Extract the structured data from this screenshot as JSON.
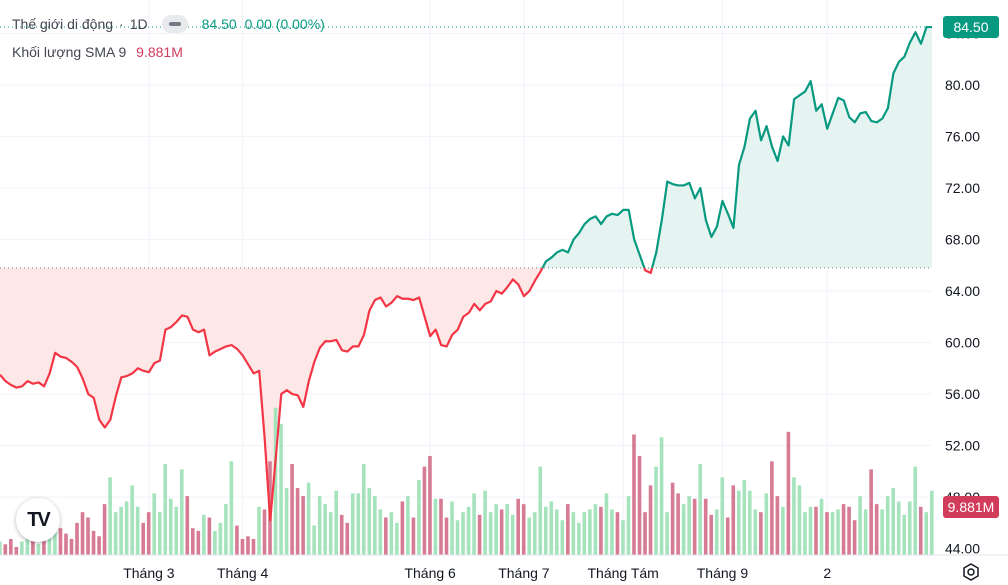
{
  "legend": {
    "symbol": "Thế giới di động",
    "interval": "1D",
    "price": "84.50",
    "change": "0.00 (0.00%)",
    "volume_label": "Khối lượng SMA 9",
    "volume_value": "9.881M"
  },
  "price_tag": "84.50",
  "volume_tag": "9.881M",
  "logo_text": "TV",
  "colors": {
    "up_line": "#089981",
    "down_line": "#f23645",
    "up_fill": "#e6f4f1",
    "down_fill": "#fde7e7",
    "vol_up": "#a5e3bd",
    "vol_down": "#d67b93",
    "baseline": "#d1d4dc"
  },
  "chart_data": {
    "type": "line",
    "baseline": 65.8,
    "ylim": [
      43.5,
      86.6
    ],
    "y_ticks": [
      "44.00",
      "48.00",
      "52.00",
      "56.00",
      "60.00",
      "64.00",
      "68.00",
      "72.00",
      "76.00",
      "80.00",
      "84.00"
    ],
    "x_ticks": [
      {
        "index": 27,
        "label": "Tháng 3"
      },
      {
        "index": 44,
        "label": "Tháng 4"
      },
      {
        "index": 78,
        "label": "Tháng 6"
      },
      {
        "index": 95,
        "label": "Tháng 7"
      },
      {
        "index": 113,
        "label": "Tháng Tám"
      },
      {
        "index": 131,
        "label": "Tháng 9"
      },
      {
        "index": 150,
        "label": "2"
      }
    ],
    "price": [
      57.5,
      57,
      56.7,
      56.5,
      56.6,
      57,
      56.8,
      56.9,
      56.6,
      57.6,
      59.2,
      58.9,
      58.8,
      58.5,
      58.1,
      57.2,
      56,
      55.7,
      54,
      53.4,
      54,
      55.8,
      57.3,
      57.4,
      57.6,
      58,
      57.8,
      57.7,
      58.4,
      58.6,
      61,
      61.2,
      61.6,
      62.1,
      62,
      61,
      60.8,
      61,
      59,
      59.3,
      59.5,
      59.7,
      59.8,
      59.5,
      59,
      58.3,
      57.6,
      57.8,
      52.5,
      46.2,
      51,
      56,
      56.3,
      56,
      55.9,
      55,
      57,
      58.5,
      59.6,
      60.1,
      60.1,
      60.2,
      59.4,
      59.3,
      59.7,
      59.7,
      60.6,
      62.5,
      63.3,
      63.5,
      62.8,
      63.1,
      63.6,
      63.4,
      63.4,
      63.3,
      63.5,
      62,
      60.5,
      61,
      59.8,
      59.7,
      60.6,
      61,
      62,
      62.3,
      63,
      62.5,
      63,
      63.2,
      64,
      63.8,
      64.3,
      64.9,
      64.5,
      63.6,
      64,
      64.8,
      65.5,
      66.3,
      66.6,
      67,
      67.2,
      67,
      68,
      68.5,
      69.2,
      69.6,
      69.8,
      69.2,
      69.8,
      70,
      69.9,
      70.3,
      70.3,
      68,
      66.8,
      65.6,
      65.4,
      67,
      69.5,
      72.5,
      72.3,
      72.2,
      72.2,
      72.4,
      71.2,
      72,
      69.5,
      68.2,
      69,
      71,
      70,
      68.9,
      73.8,
      75.2,
      77.4,
      78,
      75.7,
      76.8,
      75.2,
      74.1,
      76,
      75.3,
      78.9,
      79.2,
      79.5,
      80.3,
      78,
      78.5,
      76.6,
      77.8,
      79,
      78.8,
      77.5,
      77.1,
      77.8,
      77.9,
      77.2,
      77.1,
      77.4,
      78.2,
      80.9,
      81.8,
      82.2,
      83.3,
      84.1,
      83.2,
      84.5,
      84.5
    ],
    "volume": [
      0.5,
      0.4,
      0.6,
      0.3,
      0.5,
      0.8,
      0.9,
      0.4,
      0.6,
      1.2,
      1.6,
      1,
      0.8,
      0.6,
      1.2,
      1.6,
      1.4,
      0.9,
      0.7,
      1.9,
      2.9,
      1.6,
      1.8,
      2,
      2.6,
      1.8,
      1.2,
      1.6,
      2.3,
      1.6,
      3.4,
      2.1,
      1.8,
      3.2,
      2.2,
      1,
      0.9,
      1.5,
      1.4,
      0.9,
      1.2,
      1.9,
      3.5,
      1.1,
      0.6,
      0.7,
      0.6,
      1.8,
      1.7,
      3.5,
      5.5,
      4.9,
      2.5,
      3.4,
      2.5,
      2.2,
      2.7,
      1.1,
      2.2,
      1.9,
      1.6,
      2.4,
      1.5,
      1.2,
      2.3,
      2.3,
      3.4,
      2.5,
      2.2,
      1.7,
      1.4,
      1.6,
      1.2,
      2,
      2.2,
      1.4,
      2.8,
      3.3,
      3.7,
      2.1,
      2.1,
      1.4,
      2,
      1.3,
      1.6,
      1.8,
      2.3,
      1.5,
      2.4,
      1.6,
      1.9,
      1.7,
      1.9,
      1.5,
      2.1,
      1.9,
      1.4,
      1.6,
      3.3,
      1.8,
      2,
      1.7,
      1.3,
      1.9,
      1.6,
      1.2,
      1.6,
      1.7,
      1.9,
      1.8,
      2.3,
      1.7,
      1.6,
      1.3,
      2.2,
      4.5,
      3.7,
      1.6,
      2.6,
      3.3,
      4.4,
      1.6,
      2.7,
      2.3,
      1.9,
      2.2,
      2.1,
      3.4,
      2.1,
      1.5,
      1.7,
      2.9,
      1.4,
      2.6,
      2.4,
      2.8,
      2.4,
      1.7,
      1.6,
      2.3,
      3.5,
      2.2,
      1.8,
      4.6,
      2.9,
      2.6,
      1.6,
      1.8,
      1.8,
      2.1,
      1.6,
      1.6,
      1.7,
      1.9,
      1.8,
      1.3,
      2.2,
      1.7,
      3.2,
      1.9,
      1.7,
      2.2,
      2.5,
      2,
      1.5,
      2,
      3.3,
      1.8,
      1.6,
      2.4
    ]
  }
}
